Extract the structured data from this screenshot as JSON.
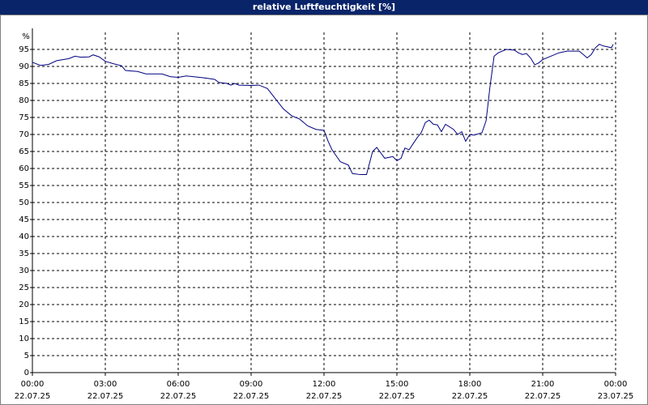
{
  "chart_data": {
    "type": "line",
    "title": "relative Luftfeuchtigkeit [%]",
    "y_label": "%",
    "xlim": [
      0,
      24
    ],
    "xticks": [
      {
        "value": 0,
        "label": [
          "00:00",
          "22.07.25"
        ]
      },
      {
        "value": 3,
        "label": [
          "03:00",
          "22.07.25"
        ]
      },
      {
        "value": 6,
        "label": [
          "06:00",
          "22.07.25"
        ]
      },
      {
        "value": 9,
        "label": [
          "09:00",
          "22.07.25"
        ]
      },
      {
        "value": 12,
        "label": [
          "12:00",
          "22.07.25"
        ]
      },
      {
        "value": 15,
        "label": [
          "15:00",
          "22.07.25"
        ]
      },
      {
        "value": 18,
        "label": [
          "18:00",
          "22.07.25"
        ]
      },
      {
        "value": 21,
        "label": [
          "21:00",
          "22.07.25"
        ]
      },
      {
        "value": 24,
        "label": [
          "00:00",
          "23.07.25"
        ]
      }
    ],
    "ylim": [
      0,
      100
    ],
    "yticks": [
      0,
      5,
      10,
      15,
      20,
      25,
      30,
      35,
      40,
      45,
      50,
      55,
      60,
      65,
      70,
      75,
      80,
      85,
      90,
      95
    ],
    "grid": true,
    "series": [
      {
        "color": "#000080",
        "x": [
          0,
          0.33,
          0.67,
          1,
          1.5,
          1.75,
          2,
          2.33,
          2.5,
          2.75,
          3,
          3.33,
          3.67,
          3.83,
          4.33,
          4.67,
          5.33,
          5.67,
          6,
          6.33,
          7,
          7.5,
          7.67,
          8,
          8.17,
          8.33,
          8.5,
          9,
          9.33,
          9.67,
          10,
          10.33,
          10.67,
          11,
          11.33,
          11.67,
          12,
          12.17,
          12.33,
          12.67,
          13,
          13.17,
          13.5,
          13.75,
          14,
          14.17,
          14.5,
          14.83,
          15,
          15.17,
          15.33,
          15.5,
          15.83,
          16,
          16.17,
          16.33,
          16.5,
          16.67,
          16.83,
          17,
          17.33,
          17.5,
          17.67,
          17.83,
          18,
          18.17,
          18.5,
          18.67,
          18.83,
          19,
          19.17,
          19.5,
          19.83,
          20,
          20.17,
          20.33,
          20.5,
          20.67,
          20.83,
          21,
          21.33,
          21.67,
          22,
          22.5,
          22.67,
          22.83,
          23,
          23.17,
          23.33,
          23.5,
          23.83,
          23.9
        ],
        "values": [
          91.2,
          90.3,
          90.6,
          91.7,
          92.3,
          93,
          92.7,
          92.8,
          93.4,
          92.8,
          91.5,
          90.8,
          90.2,
          88.8,
          88.5,
          87.8,
          87.8,
          87,
          86.8,
          87.2,
          86.7,
          86.2,
          85.3,
          85,
          84.5,
          85,
          84.5,
          84.4,
          84.5,
          83.5,
          80.5,
          77.5,
          75.5,
          74.5,
          72.5,
          71.5,
          71.2,
          68,
          65.5,
          62,
          61,
          58.5,
          58.2,
          58.2,
          65,
          66.2,
          63,
          63.5,
          62.3,
          63,
          66,
          65.5,
          69,
          70.5,
          73.5,
          74.2,
          73,
          72.8,
          70.8,
          73,
          71.5,
          70,
          70.8,
          68,
          70,
          69.8,
          70.5,
          74,
          84,
          93,
          94,
          95,
          94.8,
          94,
          93.5,
          93.8,
          92.5,
          90.5,
          91,
          92,
          93,
          94,
          94.5,
          94.5,
          93.5,
          92.5,
          93.5,
          95.5,
          96.5,
          96,
          95.5,
          96.5
        ]
      }
    ]
  }
}
